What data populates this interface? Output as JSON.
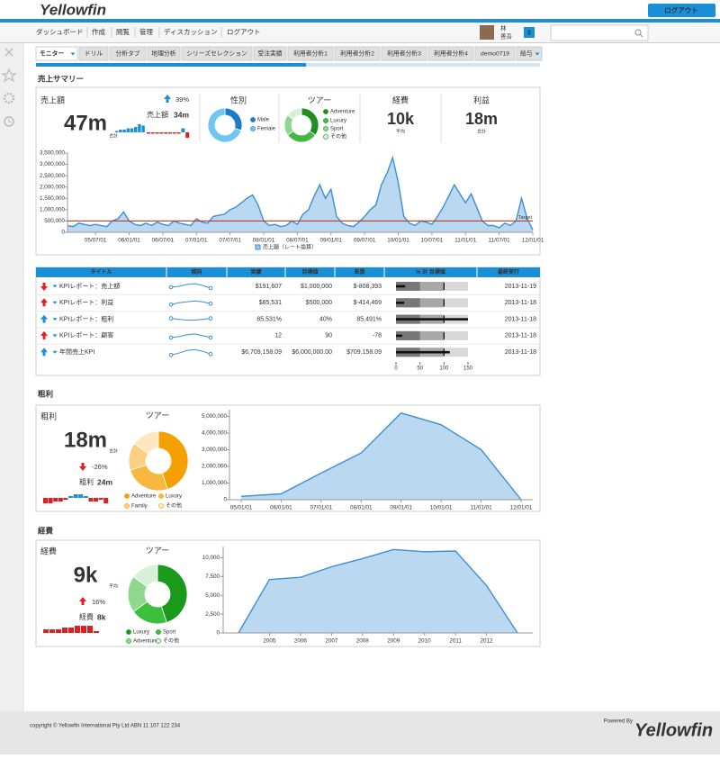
{
  "header": {
    "logo": "Yellowfin",
    "logout": "ログアウト"
  },
  "nav": {
    "items": [
      "ダッシュボード",
      "作成",
      "閲覧",
      "管理",
      "ディスカッション",
      "ログアウト"
    ],
    "user": [
      "林",
      "善吾"
    ],
    "badge": "2"
  },
  "tabs": [
    "モニター",
    "ドリル",
    "分析タブ",
    "地理分析",
    "シリーズセレクション",
    "受注実績",
    "利用者分析1",
    "利用者分析2",
    "利用者分析3",
    "利用者分析4",
    "demo0719",
    "給与"
  ],
  "sales_summary": {
    "title": "売上サマリー",
    "label": "売上額",
    "value": "47m",
    "sub": "合計",
    "change": "39%",
    "change_arrow": "up",
    "change_color": "#1a8fd8",
    "compare_label": "売上額",
    "compare_value": "34m",
    "compare_color": "#1a8fd8",
    "expense_label": "経費",
    "expense_value": "10k",
    "expense_sub": "平均",
    "profit_label": "利益",
    "profit_value": "18m",
    "profit_sub": "合計"
  },
  "kpi_table": {
    "columns": [
      "タイトル",
      "傾向",
      "実績",
      "目標値",
      "差異",
      "% 対 目標値",
      "最終実行"
    ],
    "rows": [
      {
        "title": "KPIレポート：売上額",
        "arrow": "down",
        "arrow_color": "#e02020",
        "trend": [
          4,
          5,
          7,
          8,
          6,
          3
        ],
        "actual": "$191,607",
        "target": "$1,000,000",
        "variance": "$-808,393",
        "bullet": 19,
        "last_run": "2013-11-19"
      },
      {
        "title": "KPIレポート：利益",
        "arrow": "up",
        "arrow_color": "#e02020",
        "trend": [
          3,
          5,
          6,
          7,
          6,
          4
        ],
        "actual": "$85,531",
        "target": "$500,000",
        "variance": "$-414,469",
        "bullet": 17,
        "last_run": "2013-11-18"
      },
      {
        "title": "KPIレポート：粗利",
        "arrow": "up",
        "arrow_color": "#1a8fd8",
        "trend": [
          6,
          5,
          4,
          4,
          5,
          6
        ],
        "actual": "85,531%",
        "target": "40%",
        "variance": "85,491%",
        "bullet": 150,
        "last_run": "2013-11-18"
      },
      {
        "title": "KPIレポート：顧客",
        "arrow": "up",
        "arrow_color": "#e02020",
        "trend": [
          3,
          4,
          6,
          7,
          5,
          3
        ],
        "actual": "12",
        "target": "90",
        "variance": "-78",
        "bullet": 13,
        "last_run": "2013-11-18"
      },
      {
        "title": "年間売上KPI",
        "arrow": "up",
        "arrow_color": "#1a8fd8",
        "trend": [
          2,
          4,
          7,
          8,
          6,
          3
        ],
        "actual": "$6,709,158.09",
        "target": "$6,000,000.00",
        "variance": "$709,158.09",
        "bullet": 112,
        "last_run": "2013-11-18"
      }
    ],
    "bullet_lim": [
      0,
      150
    ],
    "bullet_ticks": [
      0,
      50,
      100,
      150
    ],
    "bullet_target": 100,
    "bullet_bands": [
      50,
      100,
      150
    ]
  },
  "gross_profit": {
    "title": "粗利",
    "label": "粗利",
    "value": "18m",
    "sub": "合計",
    "change": "-26%",
    "change_arrow": "down",
    "change_color": "#e02020",
    "compare_label": "粗利",
    "compare_value": "24m",
    "compare_color": "#e02020"
  },
  "expense": {
    "title": "経費",
    "label": "経費",
    "value": "9k",
    "sub": "平均",
    "change": "16%",
    "change_arrow": "up",
    "change_color": "#e02020",
    "compare_label": "経費",
    "compare_value": "8k",
    "compare_color": "#e02020"
  },
  "footer": {
    "copyright": "copyright © Yellowfin International Pty Ltd ABN 11 107 122 234",
    "powered_by": "Powered By",
    "logo": "Yellowfin"
  },
  "chart_data": [
    {
      "type": "area",
      "grid": false,
      "categories": [
        null,
        null,
        null,
        null,
        null,
        "05/07/01",
        null,
        null,
        null,
        null,
        null,
        "06/01/01",
        null,
        null,
        null,
        null,
        null,
        "06/07/01",
        null,
        null,
        null,
        null,
        null,
        "07/01/01",
        null,
        null,
        null,
        null,
        null,
        "07/07/01",
        null,
        null,
        null,
        null,
        null,
        "08/01/01",
        null,
        null,
        null,
        null,
        null,
        "08/07/01",
        null,
        null,
        null,
        null,
        null,
        "09/01/01",
        null,
        null,
        null,
        null,
        null,
        "09/07/01",
        null,
        null,
        null,
        null,
        null,
        "10/01/01",
        null,
        null,
        null,
        null,
        null,
        "10/07/01",
        null,
        null,
        null,
        null,
        null,
        "11/01/01",
        null,
        null,
        null,
        null,
        null,
        "11/07/01",
        null,
        null,
        null,
        null,
        null,
        "12/01/01"
      ],
      "series": [
        {
          "name": "売上額（レート換算）",
          "color": "#3b8fd6",
          "values": [
            300000,
            250000,
            400000,
            350000,
            300000,
            350000,
            300000,
            250000,
            500000,
            600000,
            900000,
            500000,
            350000,
            300000,
            400000,
            300000,
            450000,
            350000,
            300000,
            500000,
            400000,
            350000,
            300000,
            600000,
            450000,
            400000,
            700000,
            750000,
            800000,
            1000000,
            1100000,
            1300000,
            1500000,
            1650000,
            1200000,
            500000,
            300000,
            350000,
            250000,
            300000,
            500000,
            350000,
            800000,
            1000000,
            1600000,
            2100000,
            1500000,
            1900000,
            700000,
            400000,
            300000,
            250000,
            450000,
            700000,
            1000000,
            1200000,
            2100000,
            2600000,
            3300000,
            2200000,
            700000,
            400000,
            300000,
            500000,
            450000,
            350000,
            700000,
            1100000,
            1600000,
            2100000,
            1700000,
            1300000,
            1700000,
            1100000,
            500000,
            300000,
            300000,
            200000,
            400000,
            300000,
            500000,
            1500000,
            600000,
            100000
          ]
        }
      ],
      "ylim": [
        0,
        3500000
      ],
      "yticks": [
        0,
        {
          "value": 500000,
          "label": "500,000"
        },
        {
          "value": 1000000,
          "label": "1,000,000"
        },
        {
          "value": 1500000,
          "label": "1,500,000"
        },
        {
          "value": 2000000,
          "label": "2,000,000"
        },
        {
          "value": 2500000,
          "label": "2,500,000"
        },
        {
          "value": 3000000,
          "label": "3,000,000"
        },
        {
          "value": 3500000,
          "label": "3,500,000"
        }
      ],
      "target": 500000,
      "target_label": "Target",
      "target_color": "#c0392b"
    },
    {
      "type": "donut",
      "title": "性別",
      "categories": [
        "Male",
        "Female"
      ],
      "values": [
        30,
        70
      ],
      "colors": [
        "#1d7cc9",
        "#6ec6f2"
      ]
    },
    {
      "type": "donut",
      "title": "ツアー",
      "categories": [
        "Adventure",
        "Luxury",
        "Sport",
        "その他"
      ],
      "values": [
        35,
        30,
        20,
        15
      ],
      "colors": [
        "#1f8f1f",
        "#43b843",
        "#8fd68f",
        "#d6efd6"
      ]
    },
    {
      "type": "minibar",
      "values": [
        1,
        2,
        2,
        3,
        3,
        4,
        6,
        5
      ],
      "positive_color": "#1a8fd8",
      "negative_color": "#e02020"
    },
    {
      "type": "minibar",
      "values": [
        -1,
        -1,
        -1,
        -1,
        -1,
        -1,
        -1,
        -1,
        3,
        -4
      ],
      "positive_color": "#1a8fd8",
      "negative_color": "#e02020"
    },
    {
      "type": "area",
      "grid": false,
      "categories": [
        "05/01/01",
        "06/01/01",
        "07/01/01",
        "08/01/01",
        "09/01/01",
        "10/01/01",
        "11/01/01",
        "12/01/01"
      ],
      "values": [
        200000,
        350000,
        1600000,
        2800000,
        5200000,
        4500000,
        3000000,
        0
      ],
      "color": "#3b8fd6",
      "ylim": [
        0,
        5400000
      ],
      "yticks": [
        0,
        {
          "value": 1000000,
          "label": "1,000,000"
        },
        {
          "value": 2000000,
          "label": "2,000,000"
        },
        {
          "value": 3000000,
          "label": "3,000,000"
        },
        {
          "value": 4000000,
          "label": "4,000,000"
        },
        {
          "value": 5000000,
          "label": "5,000,000"
        }
      ]
    },
    {
      "type": "donut",
      "title": "ツアー",
      "categories": [
        "Adventure",
        "Luxury",
        "Family",
        "その他"
      ],
      "values": [
        45,
        25,
        15,
        15
      ],
      "colors": [
        "#f5a000",
        "#f8b840",
        "#fbd080",
        "#fde8c0"
      ]
    },
    {
      "type": "minibar",
      "values": [
        -3,
        -3,
        -2,
        -2,
        -1,
        1,
        2,
        2,
        1,
        -2,
        -2,
        -1,
        -3
      ],
      "positive_color": "#1a8fd8",
      "negative_color": "#e02020"
    },
    {
      "type": "area",
      "grid": false,
      "categories": [
        null,
        "2005",
        "2006",
        "2007",
        "2008",
        "2009",
        "2010",
        "2011",
        "2012",
        null
      ],
      "values": [
        0,
        7100,
        7400,
        8800,
        9900,
        11100,
        10800,
        10900,
        6300,
        0
      ],
      "color": "#3b8fd6",
      "ylim": [
        0,
        11500
      ],
      "yticks": [
        0,
        {
          "value": 2500,
          "label": "2,500"
        },
        {
          "value": 5000,
          "label": "5,000"
        },
        {
          "value": 7500,
          "label": "7,500"
        },
        {
          "value": 10000,
          "label": "10,000"
        }
      ]
    },
    {
      "type": "donut",
      "title": "ツアー",
      "categories": [
        "Luxury",
        "Sport",
        "Adventure",
        "その他"
      ],
      "values": [
        45,
        20,
        20,
        15
      ],
      "colors": [
        "#1a9a1a",
        "#3cbf3c",
        "#90d890",
        "#d8f0d8"
      ]
    },
    {
      "type": "minibar",
      "values": [
        2,
        2,
        2,
        3,
        3,
        4,
        4,
        4,
        1
      ],
      "positive_color": "#e02020",
      "negative_color": "#e02020"
    }
  ]
}
